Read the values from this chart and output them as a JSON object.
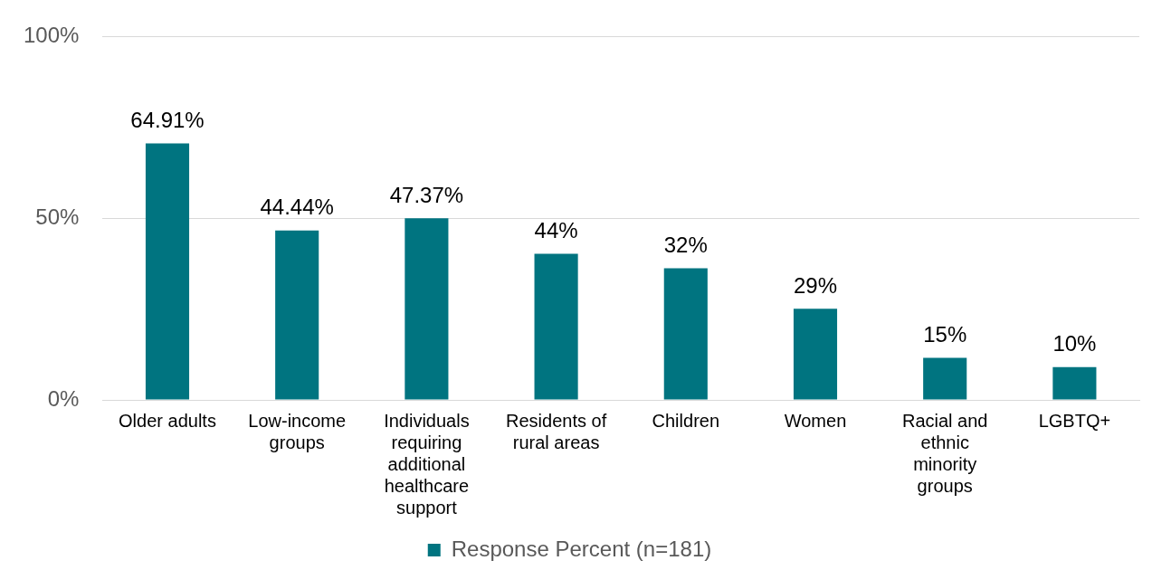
{
  "chart_data": {
    "type": "bar",
    "categories": [
      "Older adults",
      "Low-income groups",
      "Individuals requiring additional healthcare support",
      "Residents of rural areas",
      "Children",
      "Women",
      "Racial and ethnic minority groups",
      "LGBTQ+"
    ],
    "series": [
      {
        "name": "Response Percent (n=181)",
        "color": "#007480",
        "values": [
          70.6,
          46.6,
          50,
          40.2,
          36.2,
          25.1,
          11.6,
          9
        ]
      }
    ],
    "value_labels": [
      "64.91%",
      "44.44%",
      "47.37%",
      "44%",
      "32%",
      "29%",
      "15%",
      "10%"
    ],
    "ylim": [
      0,
      100
    ],
    "yticks": [
      {
        "value": 0,
        "label": "0%"
      },
      {
        "value": 50,
        "label": "50%"
      },
      {
        "value": 100,
        "label": "100%"
      }
    ],
    "grid": "y",
    "legend": "bottom"
  }
}
